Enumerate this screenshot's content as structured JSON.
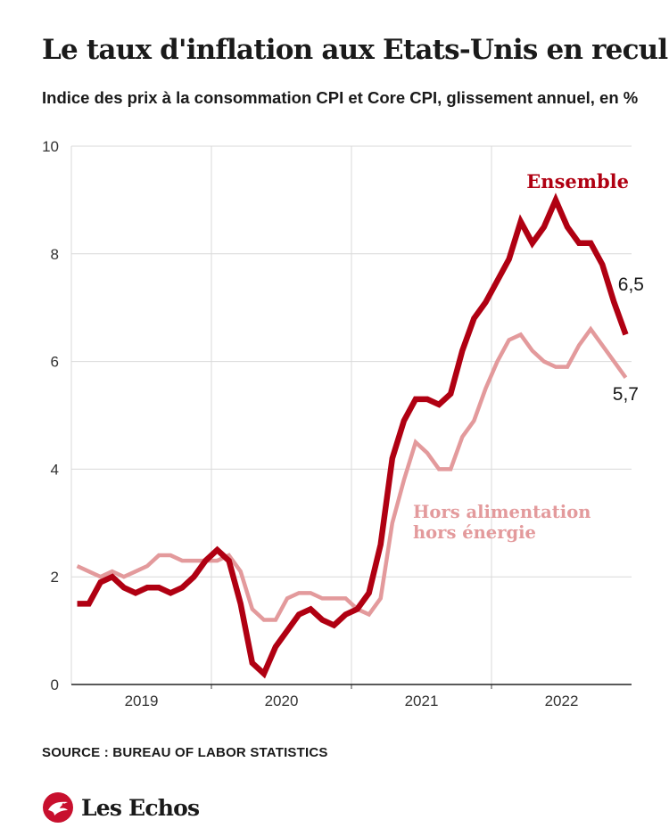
{
  "title": "Le taux d'inflation aux Etats-Unis en recul",
  "subtitle": "Indice des prix à la consommation CPI et Core CPI, glissement annuel, en %",
  "source": "SOURCE : BUREAU OF LABOR STATISTICS",
  "brand": "Les Echos",
  "colors": {
    "ensemble": "#b00012",
    "core": "#e39a9c",
    "grid": "#d9d9d9",
    "text": "#1a1a1a"
  },
  "chart_data": {
    "type": "line",
    "title": "Le taux d'inflation aux Etats-Unis en recul",
    "subtitle": "Indice des prix à la consommation CPI et Core CPI, glissement annuel, en %",
    "x": [
      "2019-01",
      "2019-02",
      "2019-03",
      "2019-04",
      "2019-05",
      "2019-06",
      "2019-07",
      "2019-08",
      "2019-09",
      "2019-10",
      "2019-11",
      "2019-12",
      "2020-01",
      "2020-02",
      "2020-03",
      "2020-04",
      "2020-05",
      "2020-06",
      "2020-07",
      "2020-08",
      "2020-09",
      "2020-10",
      "2020-11",
      "2020-12",
      "2021-01",
      "2021-02",
      "2021-03",
      "2021-04",
      "2021-05",
      "2021-06",
      "2021-07",
      "2021-08",
      "2021-09",
      "2021-10",
      "2021-11",
      "2021-12",
      "2022-01",
      "2022-02",
      "2022-03",
      "2022-04",
      "2022-05",
      "2022-06",
      "2022-07",
      "2022-08",
      "2022-09",
      "2022-10",
      "2022-11",
      "2022-12"
    ],
    "x_ticks": [
      {
        "label": "2019",
        "at": "2019-07"
      },
      {
        "label": "2020",
        "at": "2020-07"
      },
      {
        "label": "2021",
        "at": "2021-07"
      },
      {
        "label": "2022",
        "at": "2022-07"
      }
    ],
    "year_boundaries": [
      "2020-01",
      "2021-01",
      "2022-01"
    ],
    "ylim": [
      0,
      10
    ],
    "y_ticks": [
      "0",
      "2",
      "4",
      "6",
      "8",
      "10"
    ],
    "grid": true,
    "series": [
      {
        "name": "Hors alimentation hors énergie",
        "values": [
          2.2,
          2.1,
          2.0,
          2.1,
          2.0,
          2.1,
          2.2,
          2.4,
          2.4,
          2.3,
          2.3,
          2.3,
          2.3,
          2.4,
          2.1,
          1.4,
          1.2,
          1.2,
          1.6,
          1.7,
          1.7,
          1.6,
          1.6,
          1.6,
          1.4,
          1.3,
          1.6,
          3.0,
          3.8,
          4.5,
          4.3,
          4.0,
          4.0,
          4.6,
          4.9,
          5.5,
          6.0,
          6.4,
          6.5,
          6.2,
          6.0,
          5.9,
          5.9,
          6.3,
          6.6,
          6.3,
          6.0,
          5.7
        ],
        "end_label": "5,7"
      },
      {
        "name": "Ensemble",
        "values": [
          1.5,
          1.5,
          1.9,
          2.0,
          1.8,
          1.7,
          1.8,
          1.8,
          1.7,
          1.8,
          2.0,
          2.3,
          2.5,
          2.3,
          1.5,
          0.4,
          0.2,
          0.7,
          1.0,
          1.3,
          1.4,
          1.2,
          1.1,
          1.3,
          1.4,
          1.7,
          2.6,
          4.2,
          4.9,
          5.3,
          5.3,
          5.2,
          5.4,
          6.2,
          6.8,
          7.1,
          7.5,
          7.9,
          8.6,
          8.2,
          8.5,
          9.0,
          8.5,
          8.2,
          8.2,
          7.8,
          7.1,
          6.5
        ],
        "end_label": "6,5"
      }
    ]
  }
}
